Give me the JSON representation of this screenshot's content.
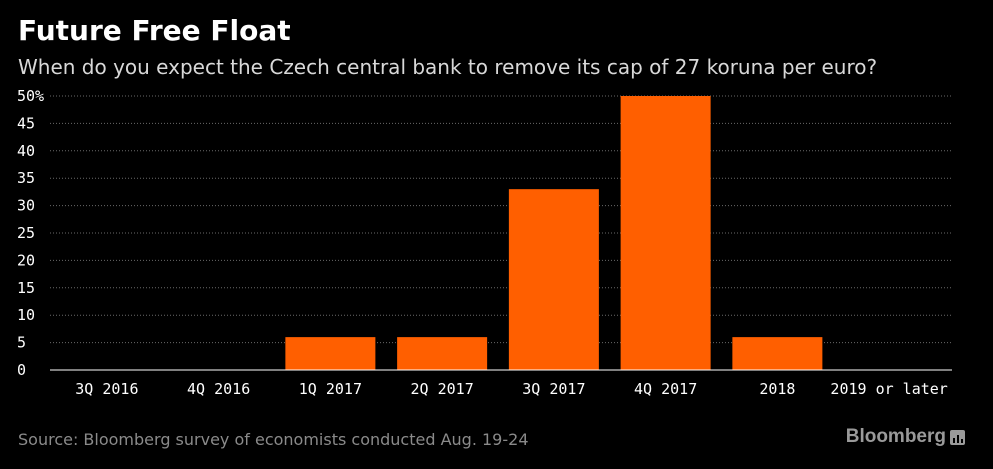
{
  "title": "Future Free Float",
  "subtitle": "When do you expect the Czech central bank to remove its cap of 27 koruna per euro?",
  "source": "Source: Bloomberg survey of economists conducted Aug. 19-24",
  "logo": "Bloomberg",
  "colors": {
    "background": "#000000",
    "bar": "#ff5f00",
    "gridline": "#6a6a6a",
    "text": "#ffffff"
  },
  "chart_data": {
    "type": "bar",
    "categories": [
      "3Q 2016",
      "4Q 2016",
      "1Q 2017",
      "2Q 2017",
      "3Q 2017",
      "4Q 2017",
      "2018",
      "2019 or later"
    ],
    "values": [
      0,
      0,
      6,
      6,
      33,
      50,
      6,
      0
    ],
    "title": "Future Free Float",
    "subtitle": "When do you expect the Czech central bank to remove its cap of 27 koruna per euro?",
    "xlabel": "",
    "ylabel": "",
    "ylim": [
      0,
      50
    ],
    "yticks": [
      0,
      5,
      10,
      15,
      20,
      25,
      30,
      35,
      40,
      45,
      50
    ],
    "ytick_labels": [
      "0",
      "5",
      "10",
      "15",
      "20",
      "25",
      "30",
      "35",
      "40",
      "45",
      "50%"
    ],
    "grid": true,
    "legend": "none"
  }
}
